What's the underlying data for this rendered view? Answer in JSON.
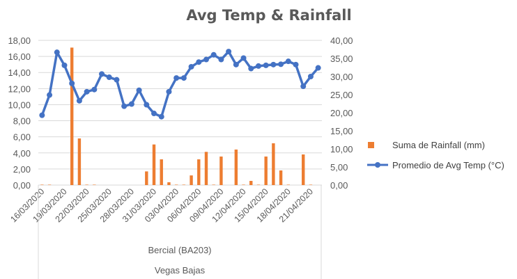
{
  "chart_data": {
    "type": "bar+line",
    "title": "Avg Temp & Rainfall",
    "categories": [
      "16/03/2020",
      "17/03/2020",
      "18/03/2020",
      "19/03/2020",
      "20/03/2020",
      "21/03/2020",
      "22/03/2020",
      "23/03/2020",
      "24/03/2020",
      "25/03/2020",
      "26/03/2020",
      "27/03/2020",
      "28/03/2020",
      "29/03/2020",
      "30/03/2020",
      "31/03/2020",
      "01/04/2020",
      "02/04/2020",
      "03/04/2020",
      "04/04/2020",
      "05/04/2020",
      "06/04/2020",
      "07/04/2020",
      "08/04/2020",
      "09/04/2020",
      "10/04/2020",
      "11/04/2020",
      "12/04/2020",
      "13/04/2020",
      "14/04/2020",
      "15/04/2020",
      "16/04/2020",
      "17/04/2020",
      "18/04/2020",
      "19/04/2020",
      "20/04/2020",
      "21/04/2020",
      "22/04/2020"
    ],
    "tick_label_every": 3,
    "group_labels": [
      "Bercial (BA203)",
      "Vegas Bajas"
    ],
    "y_left": {
      "min": 0,
      "max": 18,
      "step": 2,
      "ticks": [
        "0,00",
        "2,00",
        "4,00",
        "6,00",
        "8,00",
        "10,00",
        "12,00",
        "14,00",
        "16,00",
        "18,00"
      ]
    },
    "y_right": {
      "min": 0,
      "max": 40,
      "step": 5,
      "ticks": [
        "0,00",
        "5,00",
        "10,00",
        "15,00",
        "20,00",
        "25,00",
        "30,00",
        "35,00",
        "40,00"
      ]
    },
    "grid": true,
    "legend_position": "right",
    "series": [
      {
        "name": "Suma de Rainfall (mm)",
        "type": "bar",
        "axis": "left",
        "color": "#ED7D31",
        "values": [
          0.05,
          0.05,
          0,
          0,
          17.1,
          5.8,
          0.05,
          0.05,
          0,
          0,
          0,
          0,
          0,
          0,
          1.7,
          5.05,
          3.2,
          0.35,
          0.05,
          0.05,
          1.2,
          3.2,
          4.13,
          0.05,
          3.55,
          0,
          4.42,
          0.05,
          0.52,
          0.05,
          3.55,
          5.2,
          1.82,
          0.05,
          0,
          3.81,
          0.05,
          0
        ]
      },
      {
        "name": "Promedio de Avg Temp (°C)",
        "type": "line",
        "axis": "right",
        "color": "#4472C4",
        "values": [
          19.3,
          24.9,
          36.7,
          33.1,
          28.1,
          23.3,
          25.8,
          26.4,
          30.7,
          29.8,
          29.1,
          21.8,
          22.4,
          26.2,
          22.2,
          19.8,
          18.9,
          25.8,
          29.6,
          29.6,
          32.7,
          34.0,
          34.7,
          36.0,
          34.7,
          36.9,
          33.3,
          35.1,
          32.2,
          32.9,
          33.1,
          33.3,
          33.4,
          34.2,
          33.3,
          27.3,
          30.0,
          32.4
        ]
      }
    ]
  }
}
